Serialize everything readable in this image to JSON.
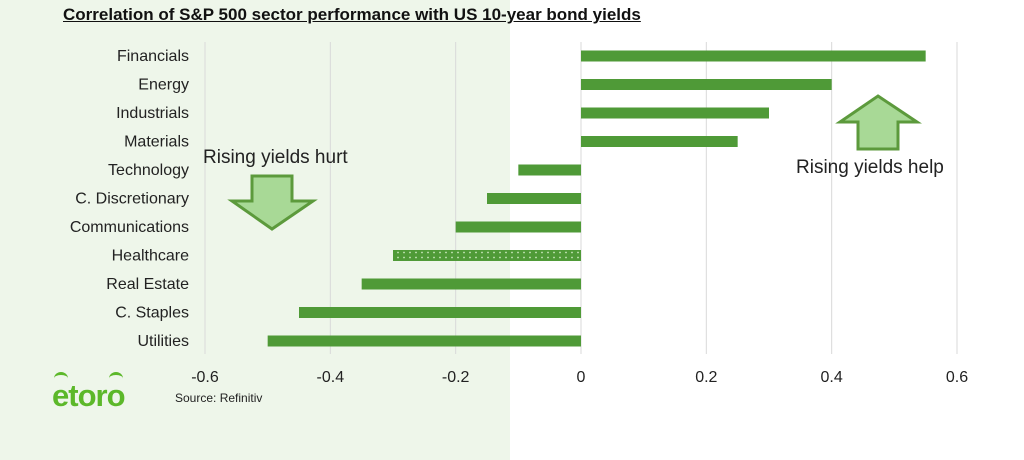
{
  "title": "Correlation of S&P 500 sector performance with US 10-year bond yields",
  "chart_data": {
    "type": "bar",
    "orientation": "horizontal",
    "title": "Correlation of S&P 500 sector performance with US 10-year bond yields",
    "xlabel": "",
    "ylabel": "",
    "categories": [
      "Financials",
      "Energy",
      "Industrials",
      "Materials",
      "Technology",
      "C. Discretionary",
      "Communications",
      "Healthcare",
      "Real Estate",
      "C. Staples",
      "Utilities"
    ],
    "values": [
      0.55,
      0.4,
      0.3,
      0.25,
      -0.1,
      -0.15,
      -0.2,
      -0.3,
      -0.35,
      -0.45,
      -0.5
    ],
    "patterned": [
      false,
      false,
      false,
      false,
      false,
      false,
      false,
      true,
      false,
      false,
      false
    ],
    "xlim": [
      -0.6,
      0.6
    ],
    "xticks": [
      -0.6,
      -0.4,
      -0.2,
      0,
      0.2,
      0.4,
      0.6
    ],
    "xtick_labels": [
      "-0.6",
      "-0.4",
      "-0.2",
      "0",
      "0.2",
      "0.4",
      "0.6"
    ],
    "grid": true,
    "bar_color": "#4f9a37",
    "annotations": {
      "hurt": "Rising yields hurt",
      "help": "Rising yields help"
    }
  },
  "colors": {
    "left_panel": "#eef6ea",
    "arrow_fill": "#a8d996",
    "arrow_stroke": "#5c9a3c",
    "logo": "#5cb82a"
  },
  "footer": {
    "logo": "etoro",
    "source": "Source: Refinitiv"
  }
}
